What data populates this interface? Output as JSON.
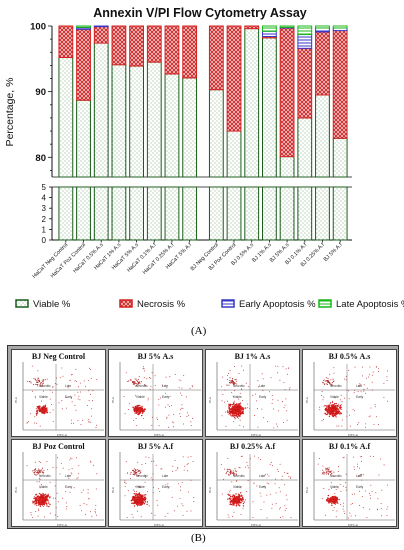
{
  "panel_a_label": "(A)",
  "panel_b_label": "(B)",
  "chart_data": {
    "type": "bar",
    "title": "Annexin V/PI Flow Cytometry Assay",
    "ylabel": "Percentage, %",
    "xlabel": "",
    "stacked": true,
    "broken_axis": true,
    "upper_ylim": [
      77,
      100
    ],
    "upper_yticks": [
      80,
      90,
      100
    ],
    "lower_ylim": [
      0,
      5
    ],
    "lower_yticks": [
      0,
      1,
      2,
      3,
      4,
      5
    ],
    "legend_position": "bottom",
    "colors": {
      "viable": "#1a5c1a",
      "necrosis": "#d42020",
      "early": "#3838c8",
      "late": "#18b818"
    },
    "categories": [
      "HaCaT Neg Control",
      "HaCaT Poz Control",
      "HaCaT 0.5% A.s",
      "HaCaT 1% A.s",
      "HaCaT 5% A.s",
      "HaCaT 0.1% A.f",
      "HaCaT 0.25% A.f",
      "HaCaT 5% A.f",
      "BJ Neg Control",
      "BJ Poz Control",
      "BJ 0.5% A.s",
      "BJ 1% A.s",
      "BJ 5% A.s",
      "BJ 0.1% A.f",
      "BJ 0.25% A.f",
      "BJ 5% A.f"
    ],
    "series": [
      {
        "name": "Viable %",
        "values": [
          95.2,
          88.7,
          97.4,
          94.1,
          93.9,
          94.5,
          92.7,
          92.1,
          90.3,
          84.0,
          99.6,
          98.2,
          80.1,
          86.0,
          89.5,
          82.9
        ]
      },
      {
        "name": "Necrosis %",
        "values": [
          4.8,
          10.8,
          2.5,
          5.9,
          6.1,
          5.5,
          7.3,
          7.9,
          9.7,
          16.0,
          0.4,
          0.2,
          19.6,
          10.6,
          9.6,
          16.4
        ]
      },
      {
        "name": "Early Apoptosis %",
        "values": [
          0,
          0.3,
          0.1,
          0,
          0,
          0,
          0,
          0,
          0,
          0,
          0,
          0.8,
          0.1,
          2.1,
          0.6,
          0.4
        ]
      },
      {
        "name": "Late Apoptosis %",
        "values": [
          0,
          0.2,
          0,
          0,
          0,
          0,
          0,
          0,
          0,
          0,
          0,
          0.8,
          0.2,
          1.3,
          0.3,
          0.3
        ]
      }
    ]
  },
  "flow_panels": [
    {
      "title": "BJ Neg Control",
      "q_ul": "Necrotic",
      "q_ur": "Late",
      "q_ll": "Viable",
      "q_lr": "Early",
      "x_axis": "FITC-A",
      "y_axis": "PI-A",
      "density": 0.25
    },
    {
      "title": "BJ 5% A.s",
      "q_ul": "Necrotic",
      "q_ur": "Late",
      "q_ll": "Viable",
      "q_lr": "Early",
      "x_axis": "FITC-A",
      "y_axis": "PI-A",
      "density": 0.35
    },
    {
      "title": "BJ 1% A.s",
      "q_ul": "Necrotic",
      "q_ur": "Late",
      "q_ll": "Viable",
      "q_lr": "Early",
      "x_axis": "FITC-A",
      "y_axis": "PI-A",
      "density": 0.95
    },
    {
      "title": "BJ 0.5% A.s",
      "q_ul": "Necrotic",
      "q_ur": "Late",
      "q_ll": "Viable",
      "q_lr": "Early",
      "x_axis": "FITC-A",
      "y_axis": "PI-A",
      "density": 0.85
    },
    {
      "title": "BJ Poz Control",
      "q_ul": "Necrotic",
      "q_ur": "Late",
      "q_ll": "Viable",
      "q_lr": "Early",
      "x_axis": "FITC-A",
      "y_axis": "PI-A",
      "density": 0.8
    },
    {
      "title": "BJ 5% A.f",
      "q_ul": "Necrotic",
      "q_ur": "Late",
      "q_ll": "Viable",
      "q_lr": "Early",
      "x_axis": "FITC-A",
      "y_axis": "PI-A",
      "density": 0.8
    },
    {
      "title": "BJ 0.25% A.f",
      "q_ul": "Necrotic",
      "q_ur": "Late",
      "q_ll": "Viable",
      "q_lr": "Early",
      "x_axis": "FITC-A",
      "y_axis": "PI-A",
      "density": 0.65
    },
    {
      "title": "BJ 0.1% A.f",
      "q_ul": "Necrotic",
      "q_ur": "Late",
      "q_ll": "Viable",
      "q_lr": "Early",
      "x_axis": "FITC-A",
      "y_axis": "PI-A",
      "density": 0.35
    }
  ]
}
